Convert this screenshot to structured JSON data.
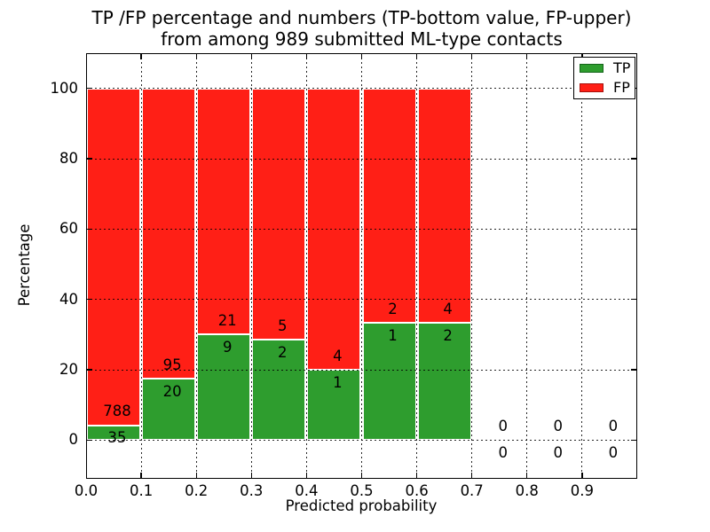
{
  "title": {
    "line1": "TP /FP percentage and numbers (TP-bottom value, FP-upper)",
    "line2": "from among 989 submitted ML-type contacts"
  },
  "y_axis": {
    "label": "Percentage",
    "ticks": [
      "0",
      "20",
      "40",
      "60",
      "80",
      "100"
    ],
    "tick_values": [
      0,
      20,
      40,
      60,
      80,
      100
    ],
    "range_pct": [
      -11,
      110
    ]
  },
  "x_axis": {
    "label": "Predicted probability",
    "ticks": [
      "0.0",
      "0.1",
      "0.2",
      "0.3",
      "0.4",
      "0.5",
      "0.6",
      "0.7",
      "0.8",
      "0.9"
    ],
    "range": [
      0.0,
      1.0
    ]
  },
  "legend": {
    "position": "upper-right",
    "items": [
      {
        "label": "TP",
        "color": "#2e9d2e",
        "edge": "#14641a"
      },
      {
        "label": "FP",
        "color": "#ff1f16",
        "edge": "#a8100c"
      }
    ]
  },
  "colors": {
    "tp": "#2e9d2e",
    "fp": "#ff1f16",
    "background": "#ffffff",
    "grid": "#000000",
    "text": "#000000"
  },
  "chart_data": {
    "type": "bar",
    "stacked": true,
    "normalized_to": 100,
    "title": "TP /FP percentage and numbers (TP-bottom value, FP-upper) from among 989 submitted ML-type contacts",
    "xlabel": "Predicted probability",
    "ylabel": "Percentage",
    "total_contacts": 989,
    "bin_width": 0.1,
    "grid": true,
    "categories": [
      "0.0-0.1",
      "0.1-0.2",
      "0.2-0.3",
      "0.3-0.4",
      "0.4-0.5",
      "0.5-0.6",
      "0.6-0.7",
      "0.7-0.8",
      "0.8-0.9",
      "0.9-1.0"
    ],
    "series": [
      {
        "name": "TP",
        "counts": [
          35,
          20,
          9,
          2,
          1,
          1,
          2,
          0,
          0,
          0
        ]
      },
      {
        "name": "FP",
        "counts": [
          788,
          95,
          21,
          5,
          4,
          2,
          4,
          0,
          0,
          0
        ]
      }
    ],
    "tp_percent": [
      4.25,
      17.39,
      30.0,
      28.57,
      20.0,
      33.33,
      33.33,
      0,
      0,
      0
    ],
    "fp_percent": [
      95.75,
      82.61,
      70.0,
      71.43,
      80.0,
      66.67,
      66.67,
      0,
      0,
      0
    ],
    "ylim": [
      -11,
      110
    ]
  }
}
